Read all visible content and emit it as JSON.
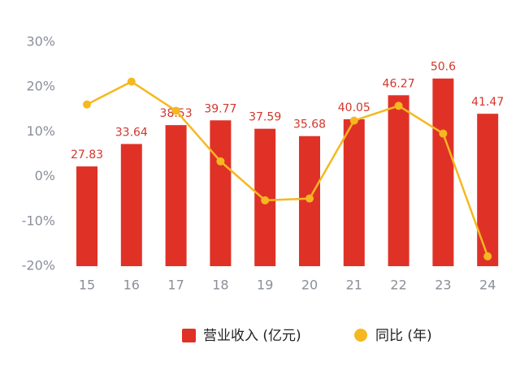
{
  "chart_data": {
    "type": "bar_line",
    "categories": [
      "15",
      "16",
      "17",
      "18",
      "19",
      "20",
      "21",
      "22",
      "23",
      "24"
    ],
    "series": [
      {
        "name": "营业收入 (亿元)",
        "color": "#e03127",
        "type": "bar",
        "axis": "y2",
        "values": [
          27.83,
          33.64,
          38.53,
          39.77,
          37.59,
          35.68,
          40.05,
          46.27,
          50.6,
          41.47
        ]
      },
      {
        "name": "同比 (年)",
        "color": "#f5b820",
        "type": "line",
        "values": [
          16.1,
          21.2,
          14.7,
          3.4,
          -5.3,
          -4.9,
          12.5,
          15.8,
          9.6,
          -17.8
        ]
      }
    ],
    "ylim": [
      -20,
      30
    ],
    "yticks": [
      {
        "value": 30,
        "label": "30%"
      },
      {
        "value": 20,
        "label": "20%"
      },
      {
        "value": 10,
        "label": "10%"
      },
      {
        "value": 0,
        "label": "0%"
      },
      {
        "value": -10,
        "label": "-10%"
      },
      {
        "value": -20,
        "label": "-20%"
      }
    ],
    "y2lim": [
      2,
      60
    ],
    "grid": false
  }
}
